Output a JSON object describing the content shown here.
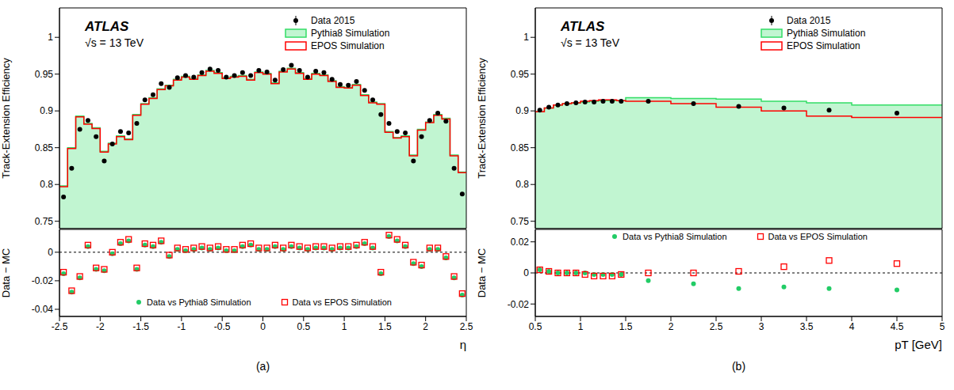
{
  "chart_data": [
    {
      "type": "histogram",
      "title": "(a)",
      "y_label": "Track-Extension Efficiency",
      "annotations": [
        "ATLAS",
        "√s = 13 TeV"
      ],
      "bins": [
        -2.5,
        -2.4,
        -2.3,
        -2.2,
        -2.1,
        -2,
        -1.9,
        -1.8,
        -1.7,
        -1.6,
        -1.5,
        -1.4,
        -1.3,
        -1.2,
        -1.1,
        -1,
        -0.9,
        -0.8,
        -0.7,
        -0.6,
        -0.5,
        -0.4,
        -0.3,
        -0.2,
        -0.1,
        0,
        0.1,
        0.2,
        0.3,
        0.4,
        0.5,
        0.6,
        0.7,
        0.8,
        0.9,
        1,
        1.1,
        1.2,
        1.3,
        1.4,
        1.5,
        1.6,
        1.7,
        1.8,
        1.9,
        2,
        2.1,
        2.2,
        2.3,
        2.4,
        2.5
      ],
      "series": [
        {
          "name": "Data 2015",
          "type": "scatter",
          "marker": "circle",
          "color": "#000000",
          "values": [
            0.783,
            0.822,
            0.875,
            0.887,
            0.865,
            0.832,
            0.855,
            0.872,
            0.87,
            0.883,
            0.915,
            0.922,
            0.937,
            0.932,
            0.945,
            0.948,
            0.946,
            0.952,
            0.957,
            0.955,
            0.946,
            0.948,
            0.952,
            0.948,
            0.955,
            0.953,
            0.942,
            0.956,
            0.962,
            0.955,
            0.946,
            0.954,
            0.952,
            0.943,
            0.936,
            0.935,
            0.94,
            0.928,
            0.915,
            0.895,
            0.883,
            0.872,
            0.87,
            0.832,
            0.865,
            0.887,
            0.897,
            0.886,
            0.822,
            0.787
          ]
        },
        {
          "name": "Pythia8 Simulation",
          "type": "area",
          "color": "#33dd66",
          "values": [
            0.798,
            0.85,
            0.893,
            0.883,
            0.877,
            0.845,
            0.856,
            0.866,
            0.862,
            0.895,
            0.91,
            0.918,
            0.93,
            0.935,
            0.943,
            0.947,
            0.944,
            0.949,
            0.955,
            0.952,
            0.945,
            0.947,
            0.948,
            0.943,
            0.953,
            0.951,
            0.938,
            0.954,
            0.958,
            0.952,
            0.944,
            0.951,
            0.949,
            0.941,
            0.933,
            0.932,
            0.936,
            0.922,
            0.912,
            0.91,
            0.872,
            0.864,
            0.866,
            0.84,
            0.875,
            0.885,
            0.895,
            0.89,
            0.84,
            0.817
          ]
        },
        {
          "name": "EPOS Simulation",
          "type": "line",
          "line_style": "step",
          "color": "#ff0000",
          "values": [
            0.797,
            0.849,
            0.892,
            0.882,
            0.876,
            0.844,
            0.855,
            0.865,
            0.861,
            0.894,
            0.909,
            0.917,
            0.929,
            0.934,
            0.942,
            0.946,
            0.943,
            0.948,
            0.954,
            0.951,
            0.944,
            0.946,
            0.947,
            0.942,
            0.952,
            0.95,
            0.937,
            0.953,
            0.957,
            0.951,
            0.943,
            0.95,
            0.948,
            0.94,
            0.932,
            0.931,
            0.935,
            0.921,
            0.911,
            0.909,
            0.871,
            0.863,
            0.865,
            0.839,
            0.874,
            0.884,
            0.894,
            0.889,
            0.839,
            0.816
          ]
        }
      ],
      "xlim": [
        -2.5,
        2.5
      ],
      "xticks": [
        -2.5,
        -2,
        -1.5,
        -1,
        -0.5,
        0,
        0.5,
        1,
        1.5,
        2,
        2.5
      ],
      "ylim": [
        0.74,
        1.04
      ],
      "yticks": [
        0.75,
        0.8,
        0.85,
        0.9,
        0.95,
        1
      ],
      "tick_labels": "y",
      "legend": "upper right"
    },
    {
      "type": "scatter",
      "x_label": "η",
      "y_label": "Data − MC",
      "bins": [
        -2.5,
        -2.4,
        -2.3,
        -2.2,
        -2.1,
        -2,
        -1.9,
        -1.8,
        -1.7,
        -1.6,
        -1.5,
        -1.4,
        -1.3,
        -1.2,
        -1.1,
        -1,
        -0.9,
        -0.8,
        -0.7,
        -0.6,
        -0.5,
        -0.4,
        -0.3,
        -0.2,
        -0.1,
        0,
        0.1,
        0.2,
        0.3,
        0.4,
        0.5,
        0.6,
        0.7,
        0.8,
        0.9,
        1,
        1.1,
        1.2,
        1.3,
        1.4,
        1.5,
        1.6,
        1.7,
        1.8,
        1.9,
        2,
        2.1,
        2.2,
        2.3,
        2.4,
        2.5
      ],
      "series": [
        {
          "name": "Data vs Pythia8 Simulation",
          "marker": "circle",
          "color": "#22cc66",
          "values": [
            -0.015,
            -0.028,
            -0.018,
            0.004,
            -0.012,
            -0.013,
            -0.001,
            0.006,
            0.008,
            -0.012,
            0.005,
            0.004,
            0.007,
            -0.003,
            0.002,
            0.001,
            0.002,
            0.003,
            0.002,
            0.003,
            0.001,
            0.001,
            0.004,
            0.005,
            0.002,
            0.002,
            0.004,
            0.002,
            0.004,
            0.003,
            0.002,
            0.003,
            0.003,
            0.002,
            0.003,
            0.003,
            0.004,
            0.006,
            0.003,
            -0.015,
            0.011,
            0.008,
            0.004,
            -0.008,
            -0.01,
            0.002,
            0.002,
            -0.004,
            -0.018,
            -0.03
          ]
        },
        {
          "name": "Data vs EPOS Simulation",
          "marker": "open_square",
          "color": "#ff0000",
          "values": [
            -0.014,
            -0.027,
            -0.017,
            0.005,
            -0.011,
            -0.012,
            0.0,
            0.007,
            0.009,
            -0.011,
            0.006,
            0.005,
            0.008,
            -0.002,
            0.003,
            0.002,
            0.003,
            0.004,
            0.003,
            0.004,
            0.002,
            0.002,
            0.005,
            0.006,
            0.003,
            0.003,
            0.005,
            0.003,
            0.005,
            0.004,
            0.003,
            0.004,
            0.004,
            0.003,
            0.004,
            0.004,
            0.005,
            0.007,
            0.004,
            -0.014,
            0.012,
            0.009,
            0.005,
            -0.007,
            -0.009,
            0.003,
            0.003,
            -0.003,
            -0.017,
            -0.029
          ]
        }
      ],
      "reference_y": 0,
      "xlim": [
        -2.5,
        2.5
      ],
      "xticks": [
        -2.5,
        -2,
        -1.5,
        -1,
        -0.5,
        0,
        0.5,
        1,
        1.5,
        2,
        2.5
      ],
      "ylim": [
        -0.045,
        0.016
      ],
      "yticks": [
        -0.04,
        -0.02,
        0
      ],
      "legend": "lower center"
    },
    {
      "type": "histogram",
      "title": "(b)",
      "y_label": "Track-Extension Efficiency",
      "annotations": [
        "ATLAS",
        "√s = 13 TeV"
      ],
      "bins": [
        0.5,
        0.6,
        0.7,
        0.8,
        0.9,
        1,
        1.1,
        1.2,
        1.3,
        1.4,
        1.5,
        2,
        2.5,
        3,
        3.5,
        4,
        5
      ],
      "series": [
        {
          "name": "Data 2015",
          "type": "scatter",
          "marker": "circle",
          "color": "#000000",
          "values": [
            0.901,
            0.905,
            0.908,
            0.91,
            0.911,
            0.912,
            0.912,
            0.913,
            0.913,
            0.913,
            0.913,
            0.91,
            0.906,
            0.904,
            0.901,
            0.897
          ]
        },
        {
          "name": "Pythia8 Simulation",
          "type": "area",
          "color": "#33dd66",
          "values": [
            0.899,
            0.904,
            0.908,
            0.91,
            0.911,
            0.912,
            0.913,
            0.914,
            0.914,
            0.914,
            0.918,
            0.917,
            0.916,
            0.913,
            0.911,
            0.908
          ]
        },
        {
          "name": "EPOS Simulation",
          "type": "line",
          "line_style": "step",
          "color": "#ff0000",
          "values": [
            0.899,
            0.904,
            0.908,
            0.91,
            0.911,
            0.913,
            0.914,
            0.915,
            0.915,
            0.914,
            0.913,
            0.91,
            0.905,
            0.9,
            0.893,
            0.891
          ]
        }
      ],
      "xlim": [
        0.5,
        5
      ],
      "xticks": [
        0.5,
        1,
        1.5,
        2,
        2.5,
        3,
        3.5,
        4,
        4.5,
        5
      ],
      "ylim": [
        0.74,
        1.04
      ],
      "yticks": [
        0.75,
        0.8,
        0.85,
        0.9,
        0.95,
        1
      ],
      "tick_labels": "y",
      "legend": "upper right"
    },
    {
      "type": "scatter",
      "x_label": "pT [GeV]",
      "y_label": "Data − MC",
      "bins": [
        0.5,
        0.6,
        0.7,
        0.8,
        0.9,
        1,
        1.1,
        1.2,
        1.3,
        1.4,
        1.5,
        2,
        2.5,
        3,
        3.5,
        4,
        5
      ],
      "series": [
        {
          "name": "Data vs Pythia8 Simulation",
          "marker": "circle",
          "color": "#22cc66",
          "values": [
            0.002,
            0.001,
            0,
            0,
            0,
            0,
            -0.001,
            -0.001,
            -0.001,
            -0.001,
            -0.005,
            -0.007,
            -0.01,
            -0.009,
            -0.01,
            -0.011
          ]
        },
        {
          "name": "Data vs EPOS Simulation",
          "marker": "open_square",
          "color": "#ff0000",
          "values": [
            0.002,
            0.001,
            0,
            0,
            0,
            -0.001,
            -0.002,
            -0.002,
            -0.002,
            -0.001,
            0,
            0,
            0.001,
            0.004,
            0.008,
            0.006
          ]
        }
      ],
      "reference_y": 0,
      "xlim": [
        0.5,
        5
      ],
      "xticks": [
        0.5,
        1,
        1.5,
        2,
        2.5,
        3,
        3.5,
        4,
        4.5,
        5
      ],
      "ylim": [
        -0.028,
        0.028
      ],
      "yticks": [
        -0.02,
        0,
        0.02
      ],
      "legend": "upper center"
    }
  ]
}
